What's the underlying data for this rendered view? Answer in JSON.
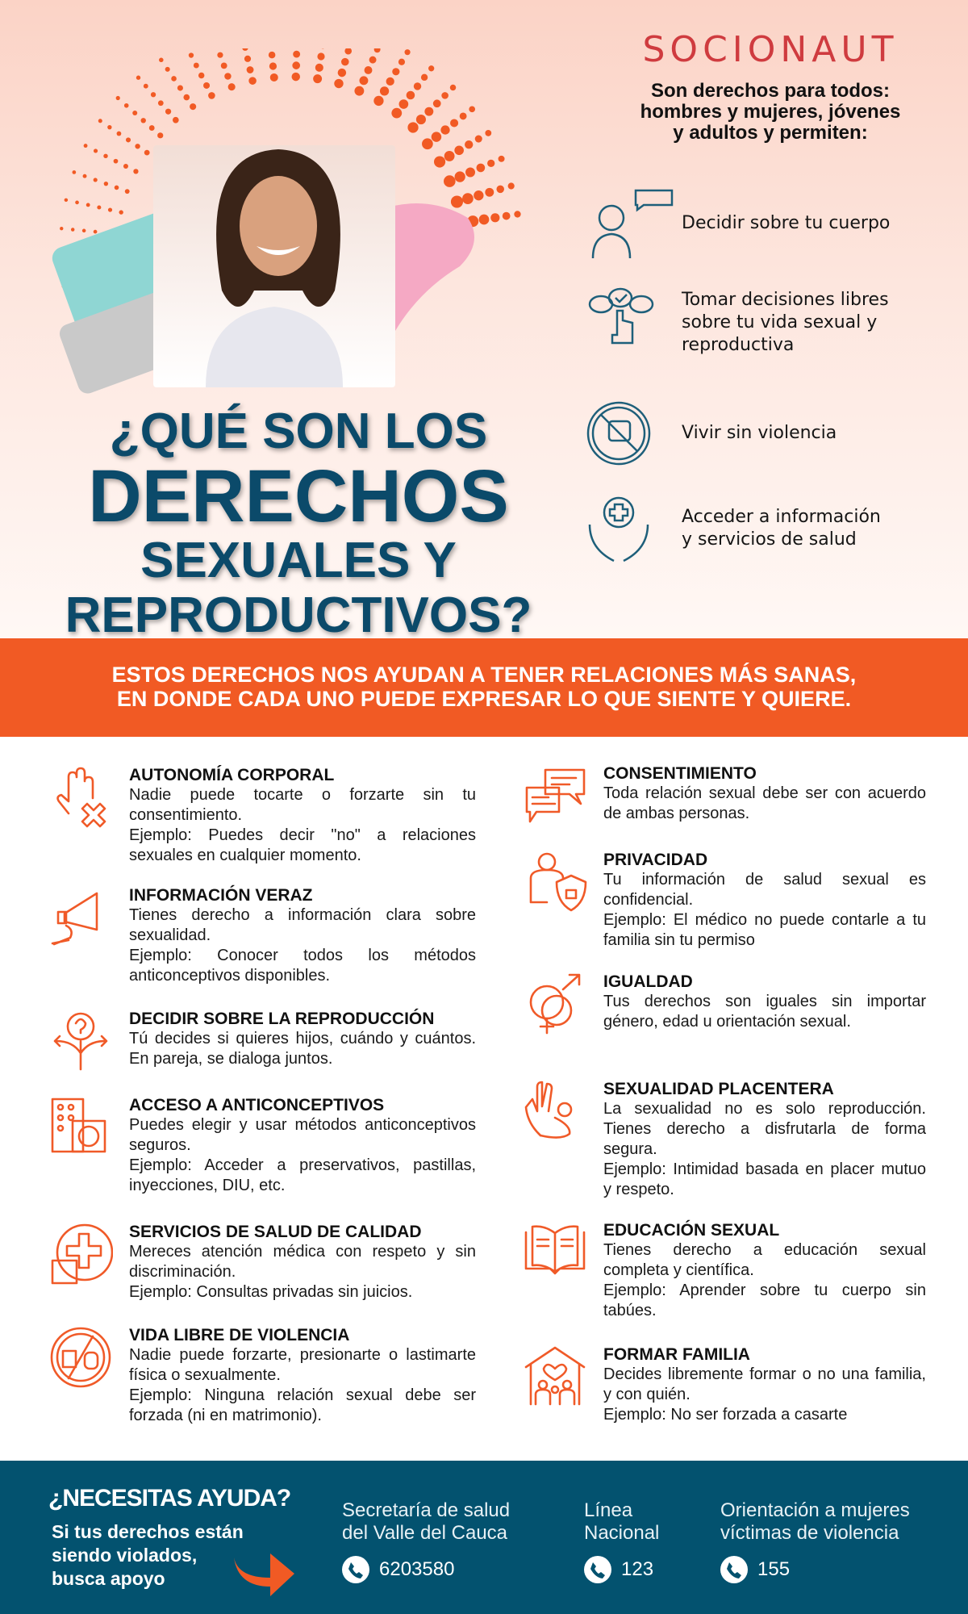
{
  "brand": {
    "logo": "SOCIONAUT",
    "logo_color": "#cf3b3f"
  },
  "intro": {
    "lines": [
      "Son derechos para todos:",
      "hombres y mujeres, jóvenes",
      "y adultos y permiten:"
    ]
  },
  "rights": [
    {
      "icon": "woman-speech-icon",
      "lines": [
        "Decidir sobre tu cuerpo"
      ]
    },
    {
      "icon": "hand-choice-icon",
      "lines": [
        "Tomar decisiones libres",
        "sobre tu vida sexual y",
        "reproductiva"
      ]
    },
    {
      "icon": "no-violence-icon",
      "lines": [
        "Vivir sin violencia"
      ]
    },
    {
      "icon": "health-hands-icon",
      "lines": [
        "Acceder a información",
        "y servicios de salud"
      ]
    }
  ],
  "title": {
    "line1": "¿QUÉ SON LOS",
    "line2": "DERECHOS",
    "line3": "SEXUALES Y",
    "line4": "REPRODUCTIVOS?",
    "color": "#0b4a6a"
  },
  "band": {
    "line1": "ESTOS DERECHOS NOS AYUDAN A TENER RELACIONES MÁS SANAS,",
    "line2": "EN DONDE CADA UNO PUEDE EXPRESAR LO QUE SIENTE Y QUIERE.",
    "color": "#f15a24"
  },
  "left_items": [
    {
      "icon": "hand-stop-icon",
      "title": "AUTONOMÍA CORPORAL",
      "text": "Nadie puede tocarte o forzarte sin tu consentimiento.",
      "example": "Ejemplo: Puedes decir \"no\" a relaciones sexuales en cualquier momento."
    },
    {
      "icon": "megaphone-icon",
      "title": "INFORMACIÓN VERAZ",
      "text": "Tienes derecho a información clara sobre sexualidad.",
      "example": "Ejemplo: Conocer todos los métodos anticonceptivos disponibles."
    },
    {
      "icon": "question-arrows-icon",
      "title": "DECIDIR SOBRE LA REPRODUCCIÓN",
      "text": "Tú decides si quieres hijos, cuándo y cuántos. En pareja, se dialoga juntos.",
      "example": ""
    },
    {
      "icon": "contraceptive-icon",
      "title": "ACCESO A ANTICONCEPTIVOS",
      "text": "Puedes elegir y usar métodos anticonceptivos seguros.",
      "example": "Ejemplo: Acceder a preservativos, pastillas, inyecciones, DIU, etc."
    },
    {
      "icon": "health-cross-icon",
      "title": "SERVICIOS DE SALUD DE CALIDAD",
      "text": "Mereces atención médica con respeto y sin discriminación.",
      "example": "Ejemplo: Consultas privadas sin juicios."
    },
    {
      "icon": "no-violence-circle-icon",
      "title": "VIDA LIBRE DE VIOLENCIA",
      "text": "Nadie puede forzarte, presionarte o lastimarte física o sexualmente.",
      "example": "Ejemplo: Ninguna relación sexual debe ser forzada (ni en matrimonio)."
    }
  ],
  "right_items": [
    {
      "icon": "chat-bubbles-icon",
      "title": "CONSENTIMIENTO",
      "text": "Toda relación sexual debe ser con acuerdo de ambas personas.",
      "example": ""
    },
    {
      "icon": "person-shield-icon",
      "title": "PRIVACIDAD",
      "text": "Tu información de salud sexual es confidencial.",
      "example": "Ejemplo: El médico no puede contarle a tu familia sin tu permiso"
    },
    {
      "icon": "gender-symbols-icon",
      "title": "IGUALDAD",
      "text": "Tus derechos son iguales sin importar género, edad u orientación sexual.",
      "example": ""
    },
    {
      "icon": "ok-hand-icon",
      "title": "SEXUALIDAD PLACENTERA",
      "text": "La sexualidad no es solo reproducción. Tienes derecho a disfrutarla de forma segura.",
      "example": "Ejemplo: Intimidad basada en placer mutuo y respeto."
    },
    {
      "icon": "open-book-icon",
      "title": "EDUCACIÓN SEXUAL",
      "text": "Tienes derecho a educación sexual completa y científica.",
      "example": "Ejemplo: Aprender sobre tu cuerpo sin tabúes."
    },
    {
      "icon": "family-house-icon",
      "title": "FORMAR FAMILIA",
      "text": "Decides libremente formar o no una familia, y con quién.",
      "example": "Ejemplo: No ser forzada a casarte"
    }
  ],
  "footer": {
    "heading": "¿NECESITAS AYUDA?",
    "sub": [
      "Si tus derechos están",
      "siendo violados,",
      "busca apoyo"
    ],
    "color": "#03526f",
    "contacts": [
      {
        "label": [
          "Secretaría de salud",
          "del Valle del Cauca"
        ],
        "phone": "6203580"
      },
      {
        "label": [
          "Línea",
          "Nacional"
        ],
        "phone": "123"
      },
      {
        "label": [
          "Orientación a mujeres",
          "víctimas de violencia"
        ],
        "phone": "155"
      }
    ]
  }
}
